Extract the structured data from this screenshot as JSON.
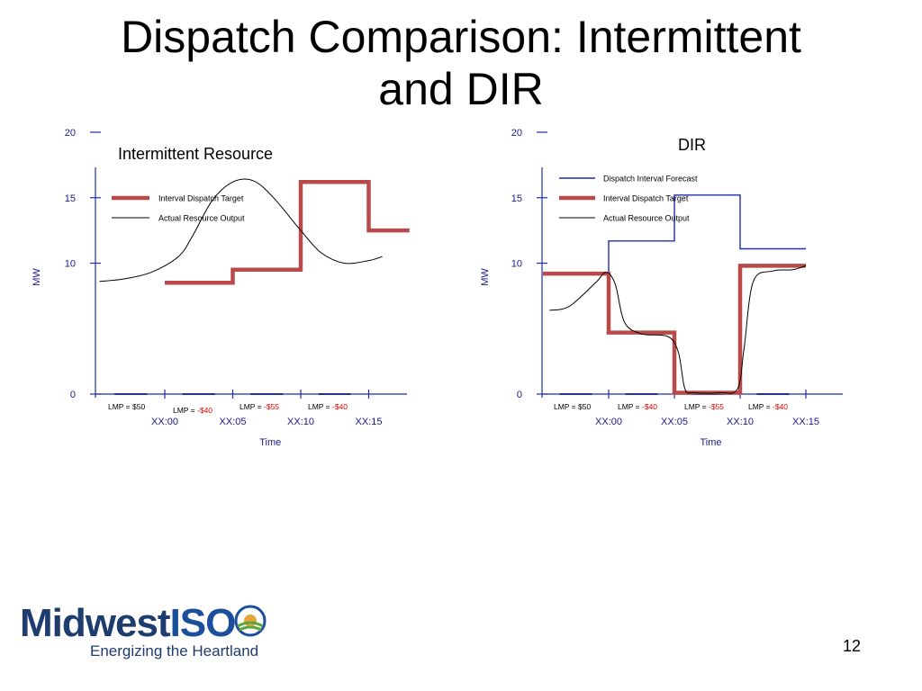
{
  "slide": {
    "title_line1": "Dispatch Comparison:  Intermittent",
    "title_line2": "and DIR",
    "page_number": "12"
  },
  "logo": {
    "word": "Midwest",
    "iso": "ISO",
    "tagline": "Energizing the Heartland"
  },
  "colors": {
    "target": "#b94a4a",
    "forecast": "#1f2db0",
    "output": "#000000",
    "axis_text": "#1a1a8c",
    "negative_price": "#e00000"
  },
  "chart_data": [
    {
      "type": "line",
      "title": "Intermittent Resource",
      "xlabel": "Time",
      "ylabel": "MW",
      "x_ticks": [
        "XX:00",
        "XX:05",
        "XX:10",
        "XX:15"
      ],
      "y_ticks": [
        0,
        10,
        15,
        20
      ],
      "ylim": [
        0,
        20
      ],
      "xlim": [
        -5,
        18
      ],
      "legend_position": "top-left",
      "lmp_labels": [
        {
          "prefix": "LMP = ",
          "value": "$50",
          "negative": false
        },
        {
          "prefix": "LMP = ",
          "value": "-$40",
          "negative": true
        },
        {
          "prefix": "LMP = ",
          "value": "-$55",
          "negative": true
        },
        {
          "prefix": "LMP = ",
          "value": "-$40",
          "negative": true
        }
      ],
      "series": [
        {
          "name": "Interval Dispatch Target",
          "style": "step",
          "x": [
            0,
            5,
            5,
            10,
            10,
            15,
            15,
            18
          ],
          "y": [
            8.5,
            8.5,
            9.5,
            9.5,
            16.2,
            16.2,
            12.5,
            12.5
          ]
        },
        {
          "name": "Actual Resource Output",
          "style": "smooth",
          "x": [
            -4.8,
            -3,
            -1,
            1,
            2,
            3.5,
            5,
            6.5,
            8,
            10,
            11.5,
            13.2,
            15,
            16
          ],
          "y": [
            8.6,
            8.8,
            9.3,
            10.5,
            12,
            14.8,
            16.2,
            16.3,
            15,
            12.5,
            10.8,
            10,
            10.2,
            10.5
          ]
        }
      ]
    },
    {
      "type": "line",
      "title": "DIR",
      "xlabel": "Time",
      "ylabel": "MW",
      "x_ticks": [
        "XX:00",
        "XX:05",
        "XX:10",
        "XX:15"
      ],
      "y_ticks": [
        0,
        10,
        15,
        20
      ],
      "ylim": [
        0,
        20
      ],
      "xlim": [
        -5,
        17.5
      ],
      "legend_position": "top-left",
      "lmp_labels": [
        {
          "prefix": "LMP = ",
          "value": "$50",
          "negative": false
        },
        {
          "prefix": "LMP = ",
          "value": "-$40",
          "negative": true
        },
        {
          "prefix": "LMP = ",
          "value": "-$55",
          "negative": true
        },
        {
          "prefix": "LMP = ",
          "value": "-$40",
          "negative": true
        }
      ],
      "series": [
        {
          "name": "Dispatch Interval Forecast",
          "style": "step",
          "x": [
            -5,
            0,
            0,
            5,
            5,
            10,
            10,
            15
          ],
          "y": [
            9.3,
            9.3,
            11.7,
            11.7,
            15.2,
            15.2,
            11.1,
            11.1
          ]
        },
        {
          "name": "Interval Dispatch Target",
          "style": "step",
          "x": [
            -5,
            0,
            0,
            5,
            5,
            10,
            10,
            15
          ],
          "y": [
            9.2,
            9.2,
            4.7,
            4.7,
            0.1,
            0.1,
            9.8,
            9.8
          ]
        },
        {
          "name": "Actual Resource Output",
          "style": "smooth",
          "x": [
            -4.5,
            -3,
            -1,
            -0.2,
            0.5,
            1.2,
            2.5,
            4.5,
            5.3,
            5.8,
            6.5,
            8.5,
            9.8,
            10.3,
            11,
            12.5,
            14,
            15
          ],
          "y": [
            6.4,
            6.7,
            8.5,
            9.3,
            8.4,
            5.5,
            4.6,
            4.4,
            3.2,
            0.4,
            0.1,
            0.1,
            0.4,
            3.5,
            8.6,
            9.4,
            9.5,
            9.8
          ]
        }
      ]
    }
  ]
}
